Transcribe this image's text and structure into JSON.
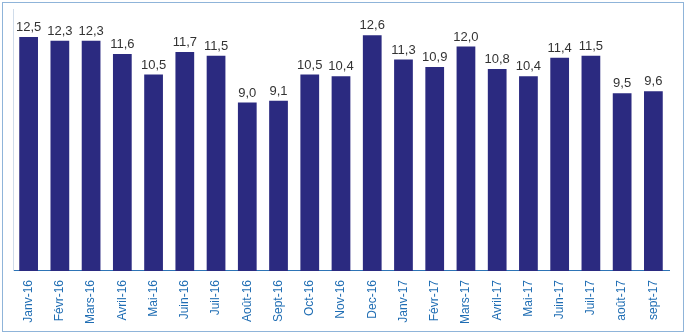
{
  "chart_data": {
    "type": "bar",
    "categories": [
      "Janv-16",
      "Févr-16",
      "Mars-16",
      "Avril-16",
      "Mai-16",
      "Juin-16",
      "Juil-16",
      "Août-16",
      "Sept-16",
      "Oct-16",
      "Nov-16",
      "Dec-16",
      "Janv-17",
      "Févr-17",
      "Mars-17",
      "Avril-17",
      "Mai-17",
      "Juin-17",
      "Juil-17",
      "août-17",
      "sept-17"
    ],
    "values": [
      12.5,
      12.3,
      12.3,
      11.6,
      10.5,
      11.7,
      11.5,
      9.0,
      9.1,
      10.5,
      10.4,
      12.6,
      11.3,
      10.9,
      12.0,
      10.8,
      10.4,
      11.4,
      11.5,
      9.5,
      9.6
    ],
    "value_labels": [
      "12,5",
      "12,3",
      "12,3",
      "11,6",
      "10,5",
      "11,7",
      "11,5",
      "9,0",
      "9,1",
      "10,5",
      "10,4",
      "12,6",
      "11,3",
      "10,9",
      "12,0",
      "10,8",
      "10,4",
      "11,4",
      "11,5",
      "9,5",
      "9,6"
    ],
    "color": "#2b2a80",
    "ylim": [
      0,
      14
    ],
    "grid": false,
    "data_labels": true,
    "tick_labels": "x"
  }
}
